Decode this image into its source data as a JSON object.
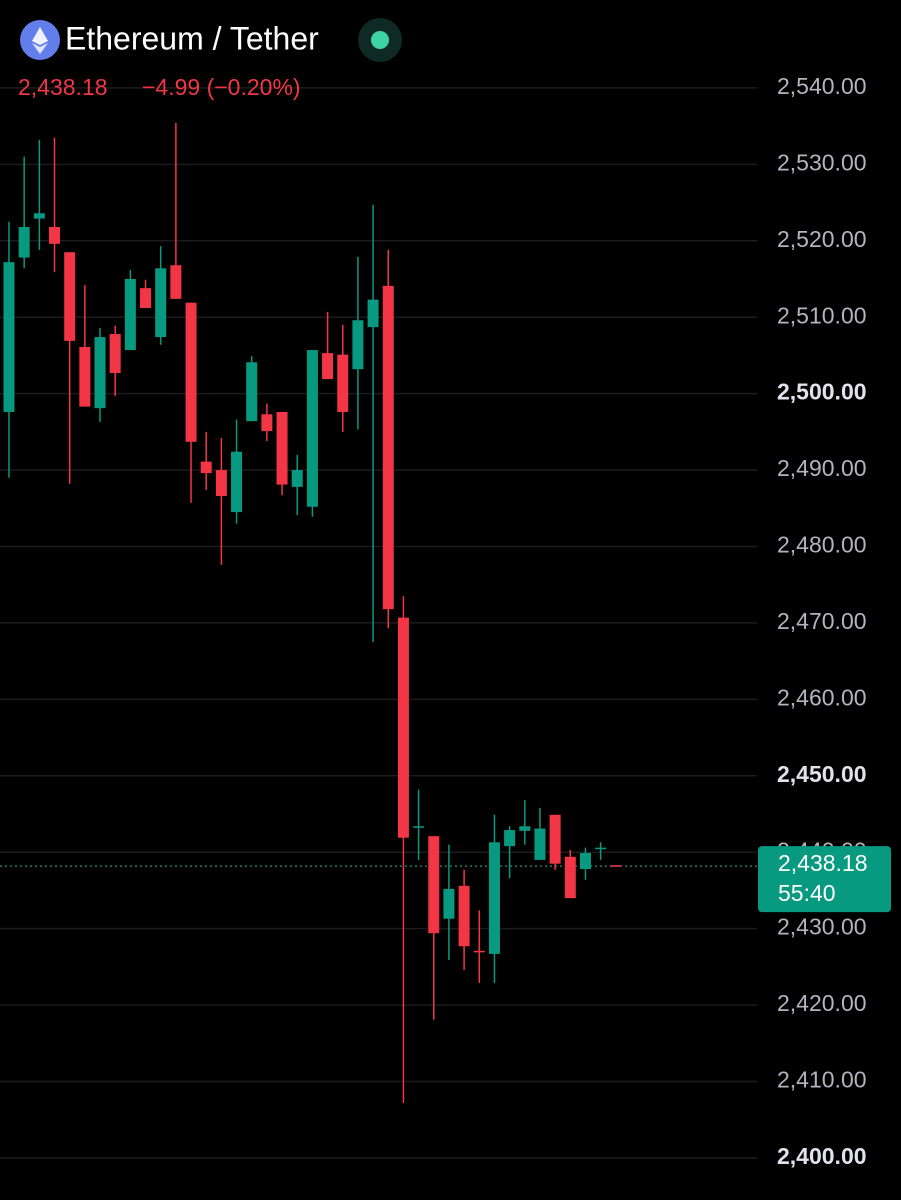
{
  "chart_data": {
    "type": "candlestick",
    "title": "Ethereum / Tether",
    "price": {
      "value": 2438.18,
      "label": "2,438.18"
    },
    "change": "−4.99 (−0.20%)",
    "countdown": "55:40",
    "up_color": "#089981",
    "down_color": "#f23645",
    "grid": true,
    "ylim": [
      2394.5,
      2551.5
    ],
    "yticks": [
      {
        "value": 2540,
        "label": "2,540.00"
      },
      {
        "value": 2530,
        "label": "2,530.00"
      },
      {
        "value": 2520,
        "label": "2,520.00"
      },
      {
        "value": 2510,
        "label": "2,510.00"
      },
      {
        "value": 2500,
        "label": "2,500.00"
      },
      {
        "value": 2490,
        "label": "2,490.00"
      },
      {
        "value": 2480,
        "label": "2,480.00"
      },
      {
        "value": 2470,
        "label": "2,470.00"
      },
      {
        "value": 2460,
        "label": "2,460.00"
      },
      {
        "value": 2450,
        "label": "2,450.00"
      },
      {
        "value": 2440,
        "label": "2,440.00"
      },
      {
        "value": 2430,
        "label": "2,430.00"
      },
      {
        "value": 2420,
        "label": "2,420.00"
      },
      {
        "value": 2410,
        "label": "2,410.00"
      },
      {
        "value": 2400,
        "label": "2,400.00"
      }
    ],
    "open": [
      2497.6,
      2517.8,
      2522.9,
      2521.8,
      2518.5,
      2506.1,
      2498.1,
      2507.8,
      2505.7,
      2513.8,
      2507.4,
      2516.8,
      2511.9,
      2491.1,
      2490.0,
      2484.5,
      2496.4,
      2497.3,
      2497.6,
      2487.8,
      2485.2,
      2505.3,
      2505.1,
      2503.2,
      2508.7,
      2514.1,
      2470.7,
      2443.2,
      2442.1,
      2431.3,
      2435.6,
      2427.1,
      2426.7,
      2440.8,
      2442.8,
      2439.0,
      2444.9,
      2439.4,
      2437.8,
      2440.4,
      2438.3
    ],
    "high": [
      2522.5,
      2531.0,
      2533.2,
      2533.5,
      2518.5,
      2514.2,
      2508.6,
      2508.9,
      2516.2,
      2514.9,
      2519.3,
      2535.4,
      2511.9,
      2495.0,
      2494.2,
      2496.6,
      2504.9,
      2498.7,
      2497.6,
      2492.0,
      2505.7,
      2510.7,
      2509.0,
      2517.9,
      2524.7,
      2518.8,
      2473.5,
      2448.2,
      2442.1,
      2441.0,
      2437.7,
      2432.4,
      2444.9,
      2443.4,
      2446.8,
      2445.8,
      2444.9,
      2440.3,
      2440.6,
      2441.3,
      2438.3
    ],
    "low": [
      2489.0,
      2516.4,
      2518.8,
      2515.9,
      2488.2,
      2498.3,
      2496.3,
      2499.7,
      2505.7,
      2511.2,
      2506.4,
      2512.4,
      2485.7,
      2487.4,
      2477.6,
      2483.0,
      2496.4,
      2493.8,
      2486.7,
      2484.1,
      2483.9,
      2501.9,
      2495.0,
      2495.3,
      2467.5,
      2469.3,
      2407.2,
      2439.0,
      2418.1,
      2425.9,
      2424.6,
      2422.9,
      2422.9,
      2436.6,
      2441.0,
      2439.0,
      2437.7,
      2434.0,
      2436.4,
      2439.0,
      2438.18
    ],
    "close": [
      2517.2,
      2521.8,
      2523.6,
      2519.6,
      2506.9,
      2498.3,
      2507.4,
      2502.7,
      2515.0,
      2511.2,
      2516.4,
      2512.4,
      2493.7,
      2489.6,
      2486.6,
      2492.4,
      2504.1,
      2495.1,
      2488.1,
      2490.0,
      2505.7,
      2501.9,
      2497.6,
      2509.6,
      2512.3,
      2471.8,
      2441.9,
      2443.4,
      2429.4,
      2435.2,
      2427.7,
      2426.9,
      2441.3,
      2442.9,
      2443.4,
      2443.1,
      2438.5,
      2434.0,
      2439.9,
      2440.6,
      2438.18
    ]
  }
}
